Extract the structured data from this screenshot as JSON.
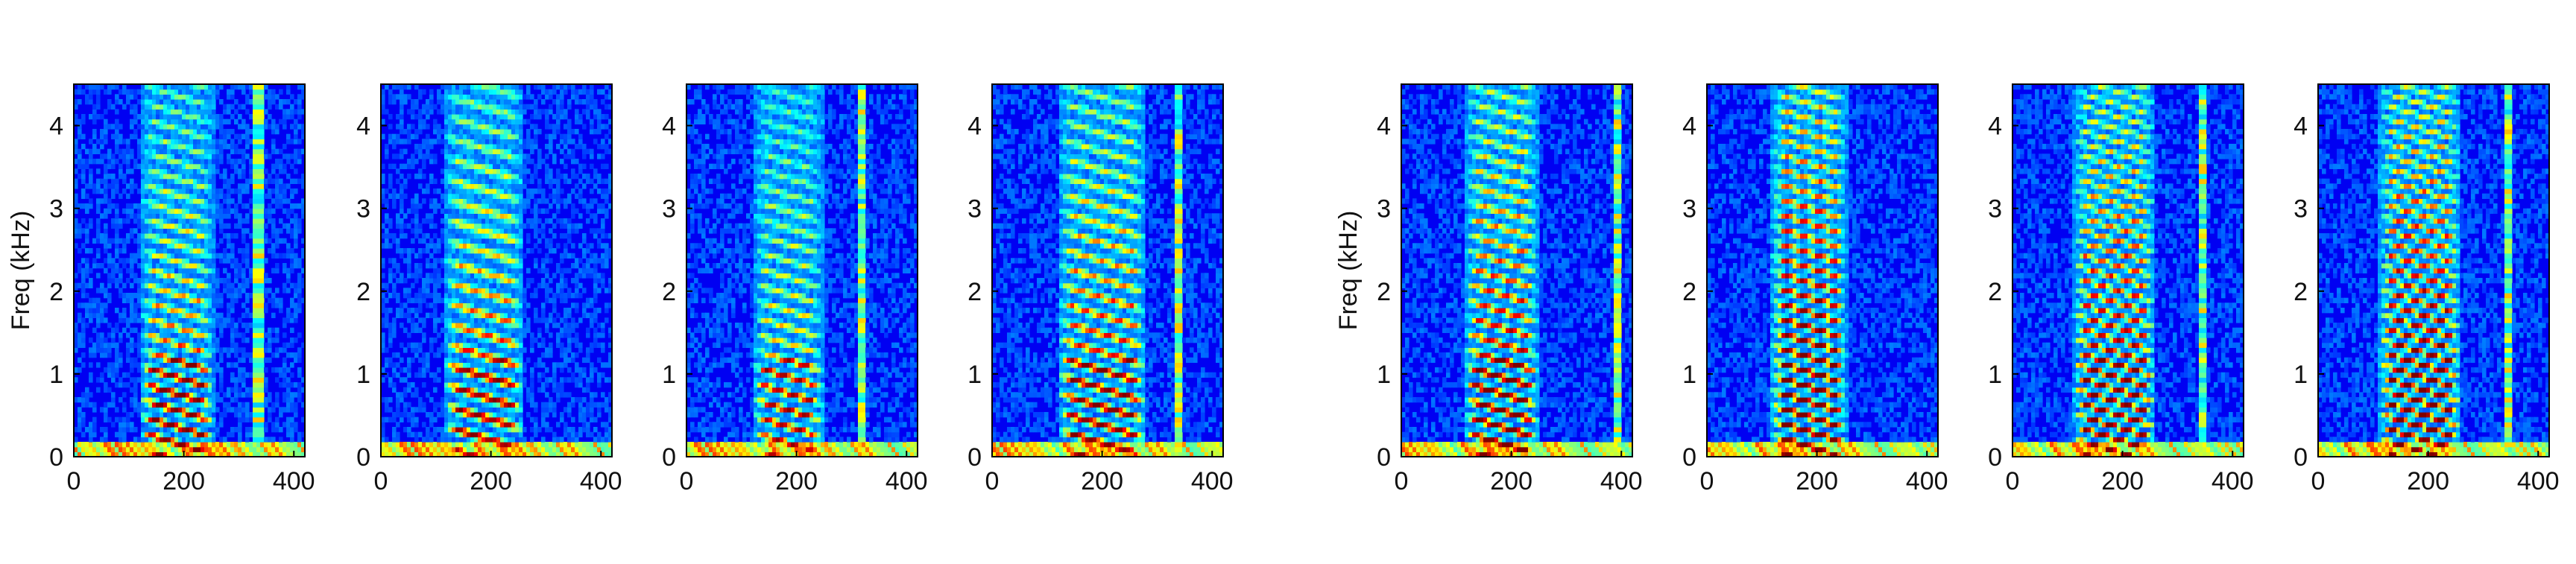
{
  "chart_data": [
    {
      "type": "heatmap",
      "ylabel": "Freq (kHz)",
      "xlim": [
        0,
        420
      ],
      "ylim": [
        0,
        4.5
      ],
      "x_ticks": [
        0,
        200,
        400
      ],
      "y_ticks": [
        0,
        1,
        2,
        3,
        4
      ],
      "voiced_start": 120,
      "voiced_end": 255,
      "harmonic_spacing_khz": 0.2,
      "low_energy": 0.9,
      "high_energy": 0.55,
      "transient_x": 335
    },
    {
      "type": "heatmap",
      "ylabel": "",
      "xlim": [
        0,
        420
      ],
      "ylim": [
        0,
        4.5
      ],
      "x_ticks": [
        0,
        200,
        400
      ],
      "y_ticks": [
        0,
        1,
        2,
        3,
        4
      ],
      "voiced_start": 115,
      "voiced_end": 260,
      "harmonic_spacing_khz": 0.25,
      "low_energy": 0.8,
      "high_energy": 0.6,
      "transient_x": 0
    },
    {
      "type": "heatmap",
      "ylabel": "",
      "xlim": [
        0,
        420
      ],
      "ylim": [
        0,
        4.5
      ],
      "x_ticks": [
        0,
        200,
        400
      ],
      "y_ticks": [
        0,
        1,
        2,
        3,
        4
      ],
      "voiced_start": 120,
      "voiced_end": 250,
      "harmonic_spacing_khz": 0.2,
      "low_energy": 0.75,
      "high_energy": 0.45,
      "transient_x": 320
    },
    {
      "type": "heatmap",
      "ylabel": "",
      "xlim": [
        0,
        420
      ],
      "ylim": [
        0,
        4.5
      ],
      "x_ticks": [
        0,
        200,
        400
      ],
      "y_ticks": [
        0,
        1,
        2,
        3,
        4
      ],
      "voiced_start": 120,
      "voiced_end": 280,
      "harmonic_spacing_khz": 0.22,
      "low_energy": 0.85,
      "high_energy": 0.65,
      "transient_x": 340
    },
    {
      "type": "heatmap",
      "ylabel": "Freq (kHz)",
      "xlim": [
        0,
        420
      ],
      "ylim": [
        0,
        4.5
      ],
      "x_ticks": [
        0,
        200,
        400
      ],
      "y_ticks": [
        0,
        1,
        2,
        3,
        4
      ],
      "voiced_start": 115,
      "voiced_end": 250,
      "harmonic_spacing_khz": 0.2,
      "low_energy": 1.0,
      "high_energy": 0.75,
      "transient_x": 395
    },
    {
      "type": "heatmap",
      "ylabel": "",
      "xlim": [
        0,
        420
      ],
      "ylim": [
        0,
        4.5
      ],
      "x_ticks": [
        0,
        200,
        400
      ],
      "y_ticks": [
        0,
        1,
        2,
        3,
        4
      ],
      "voiced_start": 115,
      "voiced_end": 255,
      "harmonic_spacing_khz": 0.18,
      "low_energy": 1.0,
      "high_energy": 0.95,
      "transient_x": 0
    },
    {
      "type": "heatmap",
      "ylabel": "",
      "xlim": [
        0,
        420
      ],
      "ylim": [
        0,
        4.5
      ],
      "x_ticks": [
        0,
        200,
        400
      ],
      "y_ticks": [
        0,
        1,
        2,
        3,
        4
      ],
      "voiced_start": 110,
      "voiced_end": 260,
      "harmonic_spacing_khz": 0.15,
      "low_energy": 0.95,
      "high_energy": 0.8,
      "transient_x": 345
    },
    {
      "type": "heatmap",
      "ylabel": "",
      "xlim": [
        0,
        420
      ],
      "ylim": [
        0,
        4.5
      ],
      "x_ticks": [
        0,
        200,
        400
      ],
      "y_ticks": [
        0,
        1,
        2,
        3,
        4
      ],
      "voiced_start": 110,
      "voiced_end": 260,
      "harmonic_spacing_khz": 0.15,
      "low_energy": 1.0,
      "high_energy": 0.9,
      "transient_x": 345
    }
  ],
  "colormap": [
    "#000080",
    "#0000ff",
    "#00ffff",
    "#ffff00",
    "#ff0000",
    "#800000"
  ]
}
